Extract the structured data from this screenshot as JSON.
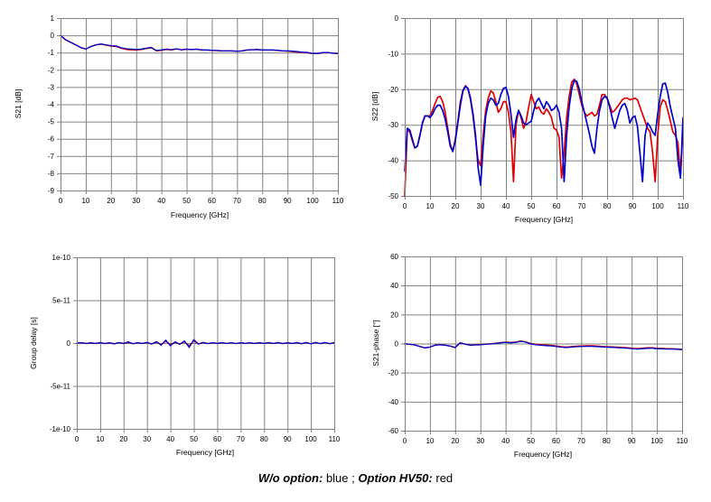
{
  "caption": {
    "label1": "W/o option:",
    "value1": "blue",
    "separator": ";",
    "label2": "Option HV50:",
    "value2": "red"
  },
  "colors": {
    "blue": "#0000cc",
    "red": "#e00000",
    "grid": "#808080",
    "text": "#000000",
    "background": "#ffffff"
  },
  "chart_data": [
    {
      "type": "line",
      "title": "",
      "xlabel": "Frequency [GHz]",
      "ylabel": "S21 [dB]",
      "xlim": [
        0,
        110
      ],
      "ylim": [
        -9,
        1
      ],
      "grid": true,
      "legend_position": "none",
      "xticks": [
        0,
        10,
        20,
        30,
        40,
        50,
        60,
        70,
        80,
        90,
        100,
        110
      ],
      "yticks": [
        1,
        0,
        -1,
        -2,
        -3,
        -4,
        -5,
        -6,
        -7,
        -8,
        -9
      ],
      "yticklabels": [
        "1",
        "0",
        "-1",
        "-2",
        "-3",
        "-4",
        "-5",
        "-6",
        "-7",
        "-8",
        "-9"
      ],
      "x": [
        0,
        2,
        4,
        6,
        8,
        10,
        12,
        14,
        16,
        18,
        20,
        22,
        24,
        26,
        28,
        30,
        32,
        34,
        36,
        38,
        40,
        42,
        44,
        46,
        48,
        50,
        52,
        54,
        56,
        58,
        60,
        62,
        64,
        66,
        68,
        70,
        72,
        74,
        76,
        78,
        80,
        82,
        84,
        86,
        88,
        90,
        92,
        94,
        96,
        98,
        100,
        102,
        104,
        106,
        108,
        110
      ],
      "series": [
        {
          "name": "Option HV50",
          "color_key": "red",
          "values": [
            -0.02,
            -0.27,
            -0.42,
            -0.56,
            -0.71,
            -0.8,
            -0.66,
            -0.56,
            -0.52,
            -0.57,
            -0.63,
            -0.65,
            -0.75,
            -0.82,
            -0.85,
            -0.86,
            -0.83,
            -0.77,
            -0.73,
            -0.9,
            -0.87,
            -0.82,
            -0.85,
            -0.8,
            -0.83,
            -0.81,
            -0.83,
            -0.81,
            -0.86,
            -0.86,
            -0.88,
            -0.89,
            -0.91,
            -0.91,
            -0.91,
            -0.93,
            -0.91,
            -0.86,
            -0.84,
            -0.83,
            -0.86,
            -0.86,
            -0.86,
            -0.88,
            -0.91,
            -0.92,
            -0.95,
            -0.98,
            -1.0,
            -1.02,
            -1.06,
            -1.06,
            -1.02,
            -1.01,
            -1.04,
            -1.06
          ]
        },
        {
          "name": "W/o option",
          "color_key": "blue",
          "values": [
            0,
            -0.25,
            -0.4,
            -0.55,
            -0.7,
            -0.8,
            -0.65,
            -0.55,
            -0.5,
            -0.55,
            -0.6,
            -0.62,
            -0.72,
            -0.78,
            -0.8,
            -0.82,
            -0.8,
            -0.75,
            -0.7,
            -0.88,
            -0.85,
            -0.8,
            -0.83,
            -0.78,
            -0.85,
            -0.8,
            -0.82,
            -0.8,
            -0.85,
            -0.85,
            -0.87,
            -0.88,
            -0.9,
            -0.9,
            -0.9,
            -0.92,
            -0.9,
            -0.85,
            -0.83,
            -0.82,
            -0.85,
            -0.85,
            -0.85,
            -0.87,
            -0.9,
            -0.9,
            -0.92,
            -0.95,
            -0.98,
            -1.0,
            -1.05,
            -1.05,
            -1.0,
            -1.0,
            -1.03,
            -1.05
          ]
        }
      ]
    },
    {
      "type": "line",
      "title": "",
      "xlabel": "Frequency [GHz]",
      "ylabel": "S22 [dB]",
      "xlim": [
        0,
        110
      ],
      "ylim": [
        -50,
        0
      ],
      "grid": true,
      "legend_position": "none",
      "xticks": [
        0,
        10,
        20,
        30,
        40,
        50,
        60,
        70,
        80,
        90,
        100,
        110
      ],
      "yticks": [
        0,
        -10,
        -20,
        -30,
        -40,
        -50
      ],
      "yticklabels": [
        "0",
        "-10",
        "-20",
        "-30",
        "-40",
        "-50"
      ],
      "x": [
        0,
        1,
        2,
        3,
        4,
        5,
        6,
        7,
        8,
        9,
        10,
        11,
        12,
        13,
        14,
        15,
        16,
        17,
        18,
        19,
        20,
        21,
        22,
        23,
        24,
        25,
        26,
        27,
        28,
        29,
        30,
        31,
        32,
        33,
        34,
        35,
        36,
        37,
        38,
        39,
        40,
        41,
        42,
        43,
        44,
        45,
        46,
        47,
        48,
        49,
        50,
        51,
        52,
        53,
        54,
        55,
        56,
        57,
        58,
        59,
        60,
        61,
        62,
        63,
        64,
        65,
        66,
        67,
        68,
        69,
        70,
        71,
        72,
        73,
        74,
        75,
        76,
        77,
        78,
        79,
        80,
        81,
        82,
        83,
        84,
        85,
        86,
        87,
        88,
        89,
        90,
        91,
        92,
        93,
        94,
        95,
        96,
        97,
        98,
        99,
        100,
        101,
        102,
        103,
        104,
        105,
        106,
        107,
        108,
        109,
        110
      ],
      "series": [
        {
          "name": "Option HV50",
          "color_key": "red",
          "values": [
            -50,
            -31.5,
            -32,
            -34.5,
            -36.5,
            -36,
            -33,
            -29.5,
            -27.5,
            -27.5,
            -27.5,
            -26,
            -24,
            -22.3,
            -22,
            -23.5,
            -26.5,
            -31,
            -35.5,
            -37.5,
            -34,
            -29,
            -23.5,
            -20.3,
            -19,
            -19.8,
            -23,
            -27.5,
            -34,
            -40,
            -41.5,
            -33,
            -26,
            -22.5,
            -20.5,
            -21,
            -23.5,
            -26.5,
            -25.5,
            -23.5,
            -23.5,
            -26.5,
            -32,
            -46,
            -30,
            -26,
            -28,
            -31,
            -29,
            -25,
            -21.5,
            -23.5,
            -25.5,
            -25,
            -26.5,
            -27,
            -25.5,
            -26.5,
            -28,
            -31,
            -31.5,
            -33.5,
            -45,
            -38,
            -28,
            -22,
            -18,
            -17.2,
            -18.5,
            -21.5,
            -24.5,
            -26.5,
            -27.5,
            -27,
            -26.5,
            -27.5,
            -27,
            -24.5,
            -21.5,
            -21.5,
            -22.5,
            -24.5,
            -26.5,
            -26,
            -25,
            -24,
            -23,
            -22.5,
            -22.5,
            -23,
            -22.8,
            -22.5,
            -23,
            -25,
            -27,
            -29,
            -31,
            -32,
            -38,
            -46,
            -33,
            -25,
            -23,
            -23.5,
            -26,
            -29,
            -32,
            -33,
            -35,
            -44,
            -31
          ]
        },
        {
          "name": "W/o option",
          "color_key": "blue",
          "values": [
            -43,
            -31,
            -31.5,
            -34,
            -36.5,
            -36,
            -33,
            -29.5,
            -27.5,
            -27.5,
            -28,
            -27,
            -25.5,
            -24.5,
            -24.5,
            -26,
            -28.5,
            -32,
            -36,
            -37.5,
            -34.5,
            -29.5,
            -24.5,
            -20.5,
            -19.2,
            -19.8,
            -22.5,
            -27,
            -33,
            -42,
            -47,
            -36,
            -27.5,
            -24,
            -22.5,
            -23,
            -24.5,
            -24,
            -21.5,
            -19.8,
            -19.5,
            -22,
            -27,
            -33.5,
            -28.5,
            -26,
            -27.5,
            -29.5,
            -30,
            -29.5,
            -29,
            -26,
            -23.5,
            -22.5,
            -24,
            -25.5,
            -23.5,
            -24.5,
            -26,
            -25.5,
            -24.5,
            -26.5,
            -31,
            -46,
            -33,
            -25,
            -20,
            -17.5,
            -17.8,
            -20,
            -23.5,
            -26.5,
            -29.5,
            -32.5,
            -36,
            -38,
            -31,
            -26,
            -23,
            -22,
            -22.5,
            -25,
            -28,
            -31,
            -28.5,
            -26,
            -24.5,
            -24,
            -26,
            -29.5,
            -28,
            -27.5,
            -30.5,
            -38,
            -46,
            -33,
            -29.5,
            -30.5,
            -32,
            -33,
            -27,
            -22,
            -18.5,
            -18.3,
            -21,
            -25,
            -28,
            -31,
            -40,
            -45,
            -28
          ]
        }
      ]
    },
    {
      "type": "line",
      "title": "",
      "xlabel": "Frequency [GHz]",
      "ylabel": "Group delay [s]",
      "xlim": [
        0,
        110
      ],
      "ylim": [
        -1e-10,
        1e-10
      ],
      "grid": true,
      "legend_position": "none",
      "xticks": [
        0,
        10,
        20,
        30,
        40,
        50,
        60,
        70,
        80,
        90,
        100,
        110
      ],
      "yticks": [
        1e-10,
        5e-11,
        0,
        -5e-11,
        -1e-10
      ],
      "yticklabels": [
        "1e-10",
        "5e-11",
        "0",
        "-5e-11",
        "-1e-10"
      ],
      "x": [
        0,
        2,
        4,
        6,
        8,
        10,
        12,
        14,
        16,
        18,
        20,
        22,
        24,
        26,
        28,
        30,
        32,
        34,
        36,
        38,
        40,
        42,
        44,
        46,
        48,
        50,
        52,
        54,
        56,
        58,
        60,
        62,
        64,
        66,
        68,
        70,
        72,
        74,
        76,
        78,
        80,
        82,
        84,
        86,
        88,
        90,
        92,
        94,
        96,
        98,
        100,
        102,
        104,
        106,
        108,
        110
      ],
      "series": [
        {
          "name": "Option HV50",
          "color_key": "red",
          "values": [
            0,
            3e-13,
            -3e-13,
            2e-13,
            -3e-13,
            4e-13,
            -4e-13,
            3e-13,
            -6e-13,
            5e-13,
            -3e-13,
            8e-13,
            -5e-13,
            3e-13,
            -3e-13,
            5e-13,
            -8e-13,
            1e-12,
            -1.5e-12,
            2e-12,
            -1.8e-12,
            1e-12,
            -1e-12,
            1.5e-12,
            -3e-12,
            2.5e-12,
            -8e-13,
            5e-13,
            -4e-13,
            3e-13,
            -3e-13,
            4e-13,
            -3e-13,
            3e-13,
            -4e-13,
            3e-13,
            -3e-13,
            3e-13,
            -3e-13,
            3e-13,
            -3e-13,
            4e-13,
            -3e-13,
            5e-13,
            -4e-13,
            3e-13,
            -3e-13,
            4e-13,
            -5e-13,
            4e-13,
            -6e-13,
            5e-13,
            -4e-13,
            4e-13,
            -5e-13,
            4e-13
          ]
        },
        {
          "name": "W/o option",
          "color_key": "blue",
          "values": [
            0,
            5e-13,
            -5e-13,
            3e-13,
            -4e-13,
            6e-13,
            -6e-13,
            4e-13,
            -1e-12,
            8e-13,
            -5e-13,
            1.5e-12,
            -8e-13,
            5e-13,
            -5e-13,
            8e-13,
            -1.2e-12,
            1.8e-12,
            -2.5e-12,
            3.5e-12,
            -3e-12,
            1.5e-12,
            -1.5e-12,
            2.5e-12,
            -5e-12,
            4e-12,
            -1.2e-12,
            8e-13,
            -6e-13,
            5e-13,
            -5e-13,
            6e-13,
            -5e-13,
            4e-13,
            -6e-13,
            5e-13,
            -4e-13,
            4e-13,
            -5e-13,
            5e-13,
            -4e-13,
            6e-13,
            -5e-13,
            8e-13,
            -6e-13,
            5e-13,
            -5e-13,
            6e-13,
            -8e-13,
            7e-13,
            -9e-13,
            8e-13,
            -6e-13,
            7e-13,
            -8e-13,
            6e-13
          ]
        }
      ]
    },
    {
      "type": "line",
      "title": "",
      "xlabel": "Frequency [GHz]",
      "ylabel": "S21-phase [°]",
      "xlim": [
        0,
        110
      ],
      "ylim": [
        -60,
        60
      ],
      "grid": true,
      "legend_position": "none",
      "xticks": [
        0,
        10,
        20,
        30,
        40,
        50,
        60,
        70,
        80,
        90,
        100,
        110
      ],
      "yticks": [
        60,
        40,
        20,
        0,
        -20,
        -40,
        -60
      ],
      "yticklabels": [
        "60",
        "40",
        "20",
        "0",
        "-20",
        "-40",
        "-60"
      ],
      "x": [
        0,
        2,
        4,
        6,
        8,
        10,
        12,
        14,
        16,
        18,
        20,
        22,
        24,
        26,
        28,
        30,
        32,
        34,
        36,
        38,
        40,
        42,
        44,
        46,
        48,
        50,
        52,
        54,
        56,
        58,
        60,
        62,
        64,
        66,
        68,
        70,
        72,
        74,
        76,
        78,
        80,
        82,
        84,
        86,
        88,
        90,
        92,
        94,
        96,
        98,
        100,
        102,
        104,
        106,
        108,
        110
      ],
      "series": [
        {
          "name": "Option HV50",
          "color_key": "red",
          "values": [
            -0.2,
            -0.5,
            -1.0,
            -2.0,
            -2.9,
            -2.4,
            -1.1,
            -0.7,
            -1.1,
            -1.7,
            -2.7,
            0.6,
            -0.4,
            -1.1,
            -0.9,
            -0.6,
            -0.3,
            -0.1,
            0.2,
            0.7,
            1.0,
            0.8,
            1.0,
            1.8,
            1.2,
            0.0,
            -0.4,
            -0.8,
            -1.0,
            -1.2,
            -1.6,
            -2.1,
            -2.4,
            -2.1,
            -1.8,
            -1.6,
            -1.5,
            -1.5,
            -1.7,
            -1.9,
            -2.1,
            -2.2,
            -2.4,
            -2.6,
            -2.8,
            -3.1,
            -3.4,
            -3.2,
            -2.9,
            -2.8,
            -3.2,
            -3.3,
            -3.5,
            -3.5,
            -3.7,
            -4.0
          ]
        },
        {
          "name": "W/o option",
          "color_key": "blue",
          "values": [
            -0.2,
            -0.5,
            -1.0,
            -2.0,
            -3.0,
            -2.5,
            -1.2,
            -0.8,
            -1.2,
            -1.8,
            -2.8,
            0.5,
            -0.5,
            -1.2,
            -1.0,
            -0.8,
            -0.5,
            -0.3,
            0.0,
            0.5,
            0.8,
            0.5,
            0.8,
            1.5,
            1.0,
            -0.3,
            -0.8,
            -1.2,
            -1.4,
            -1.6,
            -2.0,
            -2.5,
            -2.8,
            -2.5,
            -2.2,
            -2.0,
            -1.9,
            -1.9,
            -2.1,
            -2.3,
            -2.5,
            -2.6,
            -2.8,
            -3.0,
            -3.2,
            -3.5,
            -3.8,
            -3.6,
            -3.3,
            -3.2,
            -3.6,
            -3.6,
            -3.8,
            -3.8,
            -4.0,
            -4.2
          ]
        }
      ]
    }
  ]
}
